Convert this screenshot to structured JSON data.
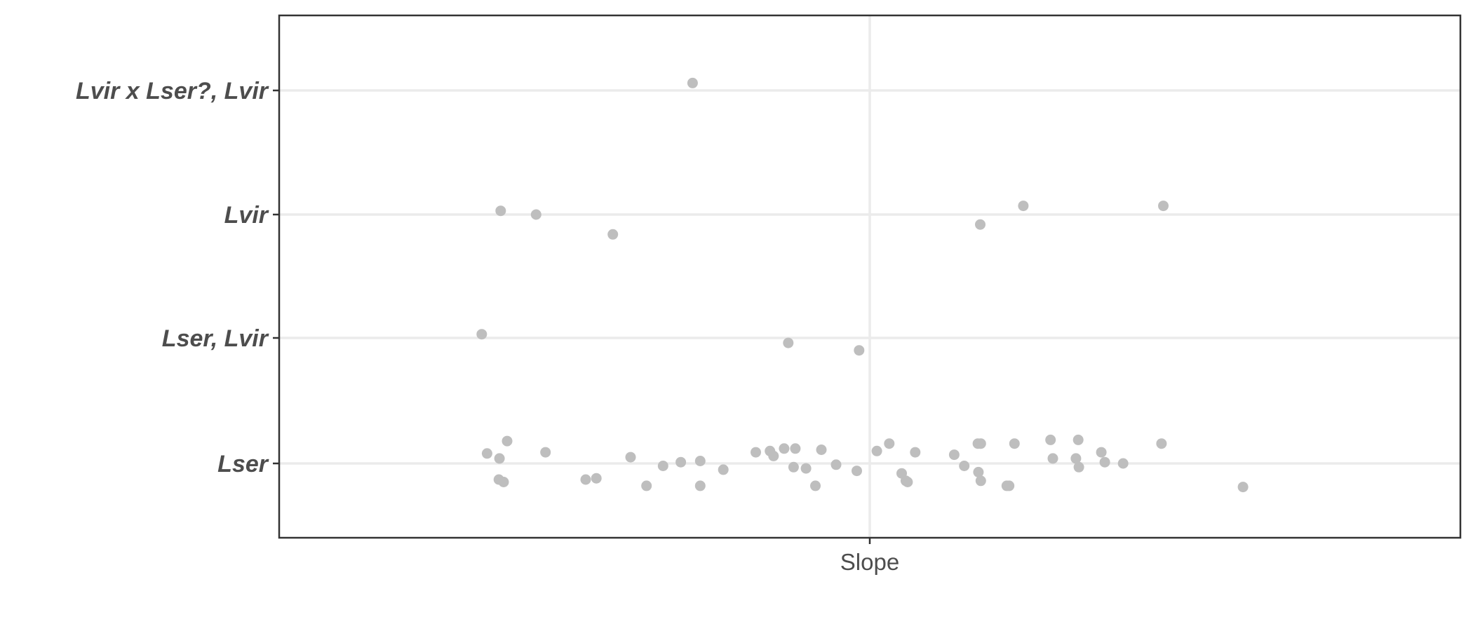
{
  "chart_data": {
    "type": "scatter",
    "title": "",
    "xlabel": "",
    "ylabel": "",
    "grid": true,
    "legend": "none",
    "x_tick_labels": [
      "Slope"
    ],
    "categories": [
      "Lser",
      "Lser, Lvir",
      "Lvir",
      "Lvir x Lser?, Lvir"
    ],
    "point_color": "#bebebe",
    "note": "Points are jittered horizontally around the single x category 'Slope'; values below are horizontal offsets (-1..1 relative to the panel width around the tick) and vertical jitter in category units.",
    "points": [
      {
        "category": "Lvir x Lser?, Lvir",
        "x": -0.3,
        "jitter": 0.06
      },
      {
        "category": "Lvir",
        "x": -0.625,
        "jitter": 0.03
      },
      {
        "category": "Lvir",
        "x": -0.565,
        "jitter": 0.0
      },
      {
        "category": "Lvir",
        "x": -0.435,
        "jitter": -0.16
      },
      {
        "category": "Lvir",
        "x": 0.187,
        "jitter": -0.08
      },
      {
        "category": "Lvir",
        "x": 0.26,
        "jitter": 0.07
      },
      {
        "category": "Lvir",
        "x": 0.497,
        "jitter": 0.07
      },
      {
        "category": "Lser, Lvir",
        "x": -0.657,
        "jitter": 0.03
      },
      {
        "category": "Lser, Lvir",
        "x": -0.138,
        "jitter": -0.04
      },
      {
        "category": "Lser, Lvir",
        "x": -0.018,
        "jitter": -0.1
      },
      {
        "category": "Lser",
        "x": -0.648,
        "jitter": 0.08
      },
      {
        "category": "Lser",
        "x": -0.627,
        "jitter": 0.04
      },
      {
        "category": "Lser",
        "x": -0.614,
        "jitter": 0.18
      },
      {
        "category": "Lser",
        "x": -0.628,
        "jitter": -0.13
      },
      {
        "category": "Lser",
        "x": -0.62,
        "jitter": -0.15
      },
      {
        "category": "Lser",
        "x": -0.549,
        "jitter": 0.09
      },
      {
        "category": "Lser",
        "x": -0.481,
        "jitter": -0.13
      },
      {
        "category": "Lser",
        "x": -0.463,
        "jitter": -0.12
      },
      {
        "category": "Lser",
        "x": -0.405,
        "jitter": 0.05
      },
      {
        "category": "Lser",
        "x": -0.378,
        "jitter": -0.18
      },
      {
        "category": "Lser",
        "x": -0.35,
        "jitter": -0.02
      },
      {
        "category": "Lser",
        "x": -0.32,
        "jitter": 0.01
      },
      {
        "category": "Lser",
        "x": -0.287,
        "jitter": 0.02
      },
      {
        "category": "Lser",
        "x": -0.287,
        "jitter": -0.18
      },
      {
        "category": "Lser",
        "x": -0.248,
        "jitter": -0.05
      },
      {
        "category": "Lser",
        "x": -0.193,
        "jitter": 0.09
      },
      {
        "category": "Lser",
        "x": -0.169,
        "jitter": 0.1
      },
      {
        "category": "Lser",
        "x": -0.163,
        "jitter": 0.06
      },
      {
        "category": "Lser",
        "x": -0.145,
        "jitter": 0.12
      },
      {
        "category": "Lser",
        "x": -0.129,
        "jitter": -0.03
      },
      {
        "category": "Lser",
        "x": -0.126,
        "jitter": 0.12
      },
      {
        "category": "Lser",
        "x": -0.108,
        "jitter": -0.04
      },
      {
        "category": "Lser",
        "x": -0.092,
        "jitter": -0.18
      },
      {
        "category": "Lser",
        "x": -0.082,
        "jitter": 0.11
      },
      {
        "category": "Lser",
        "x": -0.057,
        "jitter": -0.01
      },
      {
        "category": "Lser",
        "x": -0.022,
        "jitter": -0.06
      },
      {
        "category": "Lser",
        "x": 0.012,
        "jitter": 0.1
      },
      {
        "category": "Lser",
        "x": 0.033,
        "jitter": 0.16
      },
      {
        "category": "Lser",
        "x": 0.054,
        "jitter": -0.08
      },
      {
        "category": "Lser",
        "x": 0.061,
        "jitter": -0.14
      },
      {
        "category": "Lser",
        "x": 0.064,
        "jitter": -0.15
      },
      {
        "category": "Lser",
        "x": 0.077,
        "jitter": 0.09
      },
      {
        "category": "Lser",
        "x": 0.143,
        "jitter": 0.07
      },
      {
        "category": "Lser",
        "x": 0.16,
        "jitter": -0.02
      },
      {
        "category": "Lser",
        "x": 0.183,
        "jitter": 0.16
      },
      {
        "category": "Lser",
        "x": 0.188,
        "jitter": 0.16
      },
      {
        "category": "Lser",
        "x": 0.184,
        "jitter": -0.07
      },
      {
        "category": "Lser",
        "x": 0.188,
        "jitter": -0.14
      },
      {
        "category": "Lser",
        "x": 0.232,
        "jitter": -0.18
      },
      {
        "category": "Lser",
        "x": 0.236,
        "jitter": -0.18
      },
      {
        "category": "Lser",
        "x": 0.245,
        "jitter": 0.16
      },
      {
        "category": "Lser",
        "x": 0.306,
        "jitter": 0.19
      },
      {
        "category": "Lser",
        "x": 0.31,
        "jitter": 0.04
      },
      {
        "category": "Lser",
        "x": 0.349,
        "jitter": 0.04
      },
      {
        "category": "Lser",
        "x": 0.353,
        "jitter": 0.19
      },
      {
        "category": "Lser",
        "x": 0.354,
        "jitter": -0.03
      },
      {
        "category": "Lser",
        "x": 0.392,
        "jitter": 0.09
      },
      {
        "category": "Lser",
        "x": 0.398,
        "jitter": 0.01
      },
      {
        "category": "Lser",
        "x": 0.429,
        "jitter": 0.0
      },
      {
        "category": "Lser",
        "x": 0.494,
        "jitter": 0.16
      },
      {
        "category": "Lser",
        "x": 0.632,
        "jitter": -0.19
      }
    ]
  }
}
